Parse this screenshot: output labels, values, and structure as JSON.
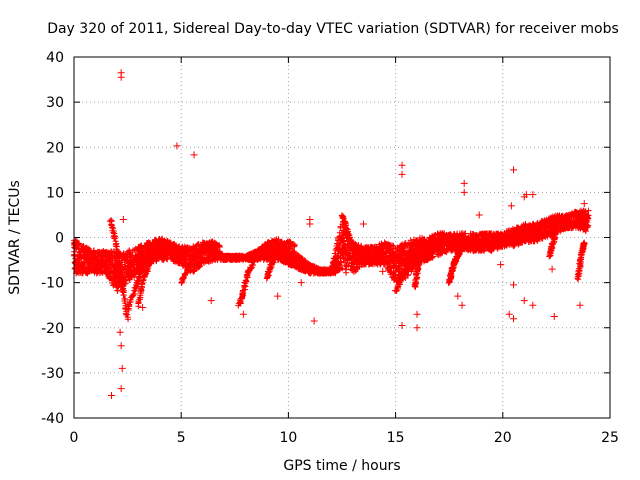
{
  "chart_data": {
    "type": "scatter",
    "title": "Day 320 of 2011, Sidereal Day-to-day VTEC variation (SDTVAR) for receiver mobs",
    "xlabel": "GPS time / hours",
    "ylabel": "SDTVAR / TECUs",
    "xlim": [
      0,
      25
    ],
    "ylim": [
      -40,
      40
    ],
    "xticks": [
      0,
      5,
      10,
      15,
      20,
      25
    ],
    "yticks": [
      -40,
      -30,
      -20,
      -10,
      0,
      10,
      20,
      30,
      40
    ],
    "xtick_labels": [
      "0",
      "5",
      "10",
      "15",
      "20",
      "25"
    ],
    "ytick_labels": [
      "-40",
      "-30",
      "-20",
      "-10",
      "0",
      "10",
      "20",
      "30",
      "40"
    ],
    "grid": true,
    "marker": "+",
    "color": "#ff0000",
    "dense_band": {
      "x": [
        0,
        0.5,
        1,
        1.5,
        2,
        2.5,
        3,
        3.5,
        4,
        4.5,
        5,
        5.5,
        6,
        6.5,
        7,
        7.5,
        8,
        8.5,
        9,
        9.5,
        10,
        10.5,
        11,
        11.5,
        12,
        12.5,
        13,
        13.5,
        14,
        14.5,
        15,
        15.5,
        16,
        16.5,
        17,
        17.5,
        18,
        18.5,
        19,
        19.5,
        20,
        20.5,
        21,
        21.5,
        22,
        22.5,
        23,
        23.5,
        24
      ],
      "y_low": [
        -8,
        -8,
        -8,
        -8,
        -12,
        -10,
        -8,
        -6,
        -5,
        -5,
        -6,
        -8,
        -6,
        -5,
        -5,
        -5,
        -5,
        -5,
        -5,
        -5,
        -6,
        -7,
        -8,
        -8,
        -8,
        -8,
        -8,
        -6,
        -6,
        -6,
        -10,
        -9,
        -6,
        -5,
        -4,
        -3,
        -3,
        -3,
        -3,
        -3,
        -2,
        -2,
        -1,
        -1,
        0,
        1,
        2,
        2,
        1
      ],
      "y_high": [
        0,
        -2,
        -3,
        -3,
        -3,
        -3,
        -2,
        -1,
        0,
        -1,
        -2,
        -2,
        -1,
        -2,
        -4,
        -4,
        -4,
        -3,
        -1,
        0,
        -2,
        -4,
        -6,
        -7,
        -7,
        4,
        -1,
        -2,
        -2,
        -1,
        -2,
        -1,
        0,
        0,
        1,
        1,
        1,
        1,
        1,
        1,
        1,
        2,
        3,
        3,
        4,
        5,
        5,
        6,
        6
      ]
    },
    "trails": [
      {
        "x": [
          1.7,
          1.9,
          2.1,
          2.3,
          2.5
        ],
        "y": [
          4,
          0,
          -5,
          -12,
          -18
        ]
      },
      {
        "x": [
          2.5,
          2.8,
          3.1,
          3.4,
          3.7,
          4.0
        ],
        "y": [
          -16,
          -12,
          -8,
          -5,
          -3,
          -2
        ]
      },
      {
        "x": [
          3.0,
          3.2,
          3.5,
          3.8,
          4.1
        ],
        "y": [
          -15,
          -10,
          -6,
          -3,
          -1
        ]
      },
      {
        "x": [
          5.0,
          5.3,
          5.6,
          6.0,
          6.4,
          6.8
        ],
        "y": [
          -10,
          -7,
          -4,
          -2,
          -1,
          -2
        ]
      },
      {
        "x": [
          7.7,
          7.9,
          8.1,
          8.4,
          8.7,
          9.0,
          9.3,
          9.6
        ],
        "y": [
          -15,
          -12,
          -8,
          -5,
          -3,
          -2,
          -1,
          -2
        ]
      },
      {
        "x": [
          9.0,
          9.2,
          9.4,
          9.7,
          10.0,
          10.3
        ],
        "y": [
          -9,
          -6,
          -4,
          -2,
          -1,
          -2
        ]
      },
      {
        "x": [
          12.5,
          12.7,
          12.9,
          13.1,
          13.3,
          13.6
        ],
        "y": [
          5,
          2,
          -1,
          -3,
          -4,
          -5
        ]
      },
      {
        "x": [
          15.0,
          15.3,
          15.6,
          15.9,
          16.2
        ],
        "y": [
          -12,
          -9,
          -6,
          -3,
          -1
        ]
      },
      {
        "x": [
          15.9,
          16.0,
          16.1,
          16.2
        ],
        "y": [
          -11,
          -8,
          -5,
          -3
        ]
      },
      {
        "x": [
          17.5,
          17.6,
          17.7,
          17.8,
          17.9,
          18.0,
          18.1,
          18.2
        ],
        "y": [
          -10,
          -8,
          -6,
          -5,
          -4,
          -3,
          -2,
          -1
        ]
      },
      {
        "x": [
          22.2,
          22.3,
          22.4,
          22.5
        ],
        "y": [
          -4,
          -2,
          0,
          2
        ]
      },
      {
        "x": [
          23.5,
          23.6,
          23.7,
          23.8
        ],
        "y": [
          -9,
          -6,
          -3,
          -1
        ]
      }
    ],
    "outliers": [
      {
        "x": 2.2,
        "y": 36.5
      },
      {
        "x": 2.2,
        "y": 35.5
      },
      {
        "x": 2.15,
        "y": -21
      },
      {
        "x": 2.2,
        "y": -24
      },
      {
        "x": 2.25,
        "y": -29
      },
      {
        "x": 2.2,
        "y": -33.5
      },
      {
        "x": 1.75,
        "y": -35
      },
      {
        "x": 2.3,
        "y": 4
      },
      {
        "x": 4.8,
        "y": 20.3
      },
      {
        "x": 5.6,
        "y": 18.3
      },
      {
        "x": 6.4,
        "y": -14
      },
      {
        "x": 7.9,
        "y": -17
      },
      {
        "x": 9.5,
        "y": -13
      },
      {
        "x": 11.0,
        "y": 4
      },
      {
        "x": 11.0,
        "y": 3
      },
      {
        "x": 11.2,
        "y": -18.5
      },
      {
        "x": 10.6,
        "y": -10
      },
      {
        "x": 3.2,
        "y": -15.5
      },
      {
        "x": 13.5,
        "y": 3
      },
      {
        "x": 15.3,
        "y": 16
      },
      {
        "x": 15.3,
        "y": 14
      },
      {
        "x": 15.3,
        "y": -19.5
      },
      {
        "x": 16.0,
        "y": -20
      },
      {
        "x": 16.0,
        "y": -17
      },
      {
        "x": 18.2,
        "y": 12
      },
      {
        "x": 18.2,
        "y": 10
      },
      {
        "x": 18.9,
        "y": 5
      },
      {
        "x": 17.9,
        "y": -13
      },
      {
        "x": 18.1,
        "y": -15
      },
      {
        "x": 20.5,
        "y": 15
      },
      {
        "x": 20.3,
        "y": -17
      },
      {
        "x": 20.5,
        "y": -18
      },
      {
        "x": 20.5,
        "y": -10.5
      },
      {
        "x": 21.0,
        "y": -14
      },
      {
        "x": 21.4,
        "y": -15
      },
      {
        "x": 22.4,
        "y": -17.5
      },
      {
        "x": 22.3,
        "y": -7
      },
      {
        "x": 23.6,
        "y": -15
      },
      {
        "x": 23.8,
        "y": 7.5
      },
      {
        "x": 21.1,
        "y": 9.5
      },
      {
        "x": 21.4,
        "y": 9.5
      },
      {
        "x": 21.0,
        "y": 9
      },
      {
        "x": 20.4,
        "y": 7
      },
      {
        "x": 19.9,
        "y": -6
      },
      {
        "x": 14.4,
        "y": -7.5
      }
    ]
  }
}
